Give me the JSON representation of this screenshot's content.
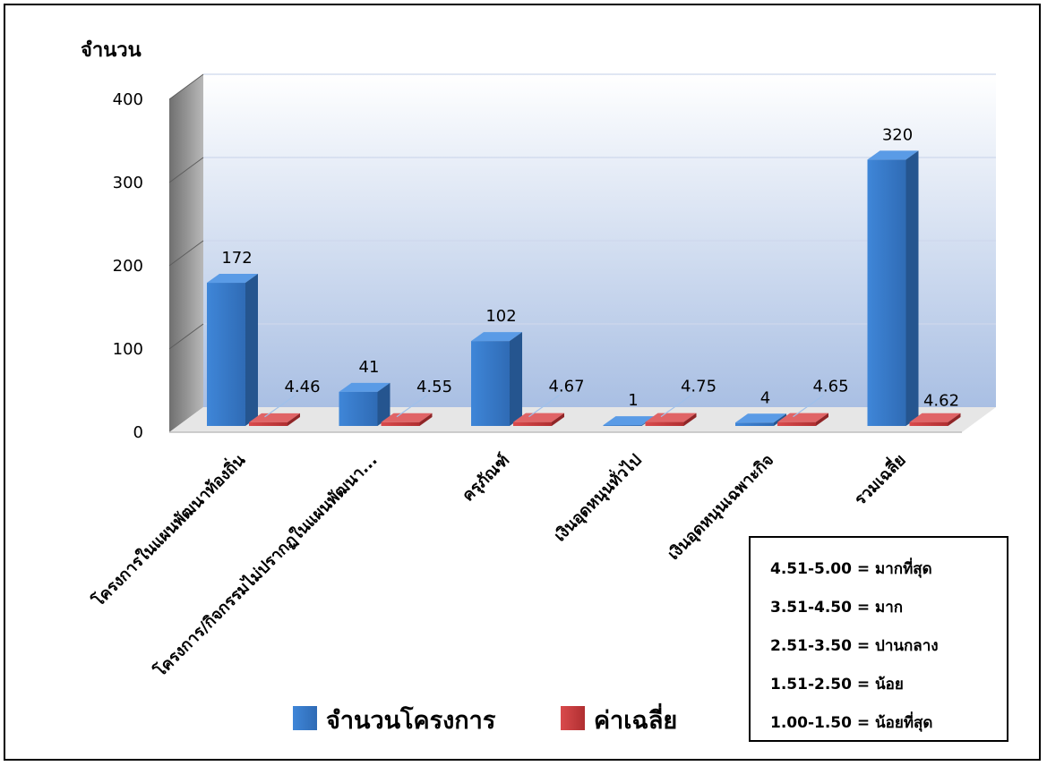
{
  "chart_data": {
    "type": "bar",
    "style": "3d-clustered-column",
    "ylabel": "จำนวน",
    "ylim": [
      0,
      400
    ],
    "yticks": [
      0,
      100,
      200,
      300,
      400
    ],
    "grid": true,
    "categories": [
      "โครงการในแผนพัฒนาท้องถิ่น",
      "โครงการ/กิจกรรมไม่ปรากฏในแผนพัฒนา...",
      "ครุภัณฑ์",
      "เงินอุดหนุนทั่วไป",
      "เงินอุดหนุนเฉพาะกิจ",
      "รวมเฉลี่ย"
    ],
    "series": [
      {
        "name": "จำนวนโครงการ",
        "color": "#3a78c9",
        "values": [
          172,
          41,
          102,
          1,
          4,
          320
        ],
        "labels": [
          "172",
          "41",
          "102",
          "1",
          "4",
          "320"
        ]
      },
      {
        "name": "ค่าเฉลี่ย",
        "color": "#c0373a",
        "values": [
          4.46,
          4.55,
          4.67,
          4.75,
          4.65,
          4.62
        ],
        "labels": [
          "4.46",
          "4.55",
          "4.67",
          "4.75",
          "4.65",
          "4.62"
        ]
      }
    ],
    "legend": "bottom"
  },
  "scale_box": [
    "4.51-5.00  = มากที่สุด",
    "3.51-4.50  = มาก",
    "2.51-3.50 = ปานกลาง",
    "1.51-2.50 = น้อย",
    "1.00-1.50 = น้อยที่สุด"
  ],
  "colors": {
    "wall_top": "#ffffff",
    "wall_bottom": "#a9bfe3",
    "side_wall": "#8a8a8a",
    "floor": "#e8e8e8"
  }
}
